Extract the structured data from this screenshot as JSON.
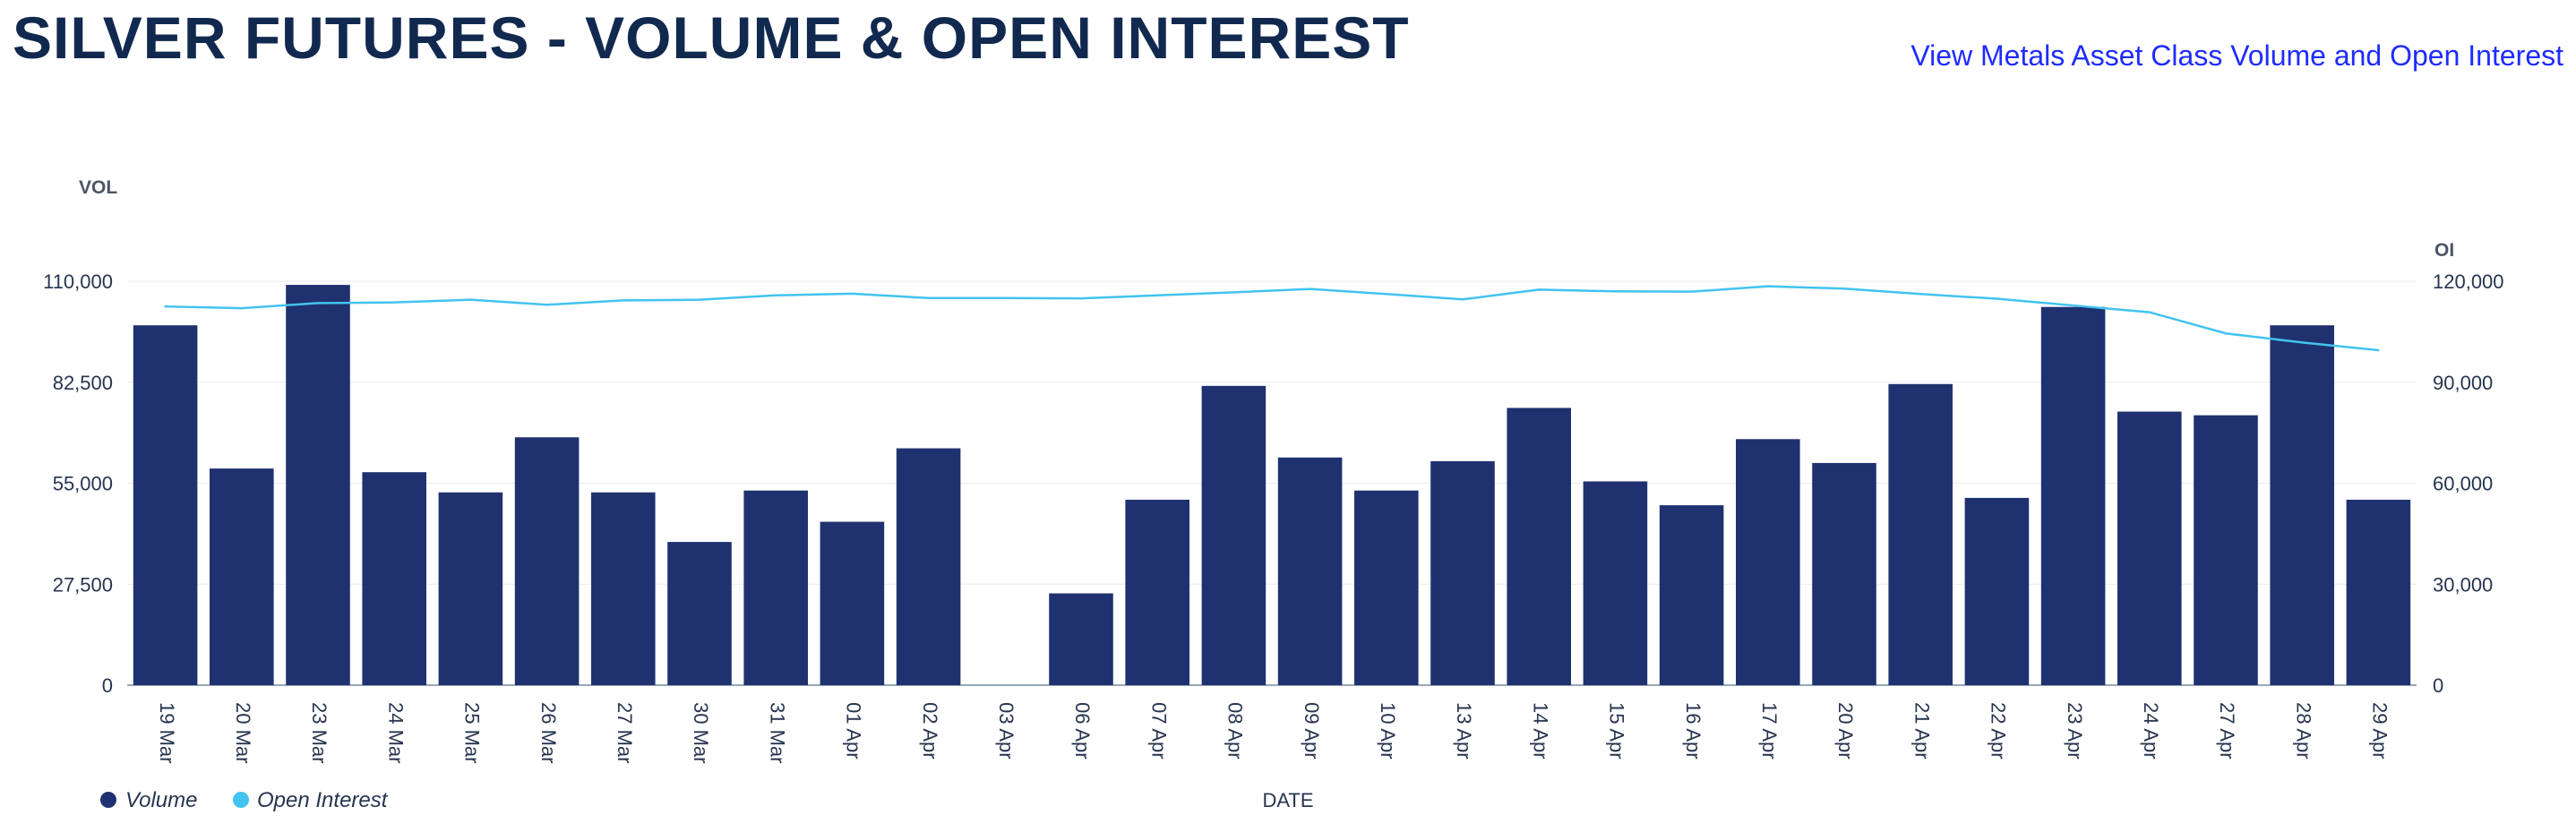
{
  "page": {
    "title": "SILVER FUTURES - VOLUME & OPEN INTEREST",
    "link_text": "View Metals Asset Class Volume and Open Interest"
  },
  "colors": {
    "volume_bar": "#1f316f",
    "open_interest_line": "#42c3ef",
    "gridline": "#e9ebef",
    "axis_text": "#27354f",
    "link": "#1f2cff",
    "title": "#12294f"
  },
  "chart_data": {
    "type": "bar",
    "title": "SILVER FUTURES - VOLUME & OPEN INTEREST",
    "xlabel": "DATE",
    "ylabel_left": "VOL",
    "ylabel_right": "OI",
    "categories": [
      "19 Mar",
      "20 Mar",
      "23 Mar",
      "24 Mar",
      "25 Mar",
      "26 Mar",
      "27 Mar",
      "30 Mar",
      "31 Mar",
      "01 Apr",
      "02 Apr",
      "03 Apr",
      "06 Apr",
      "07 Apr",
      "08 Apr",
      "09 Apr",
      "10 Apr",
      "13 Apr",
      "14 Apr",
      "15 Apr",
      "16 Apr",
      "17 Apr",
      "20 Apr",
      "21 Apr",
      "22 Apr",
      "23 Apr",
      "24 Apr",
      "27 Apr",
      "28 Apr",
      "29 Apr"
    ],
    "series": [
      {
        "name": "Volume",
        "type": "bar",
        "axis": "left",
        "values": [
          98000,
          59000,
          109000,
          58000,
          52500,
          67500,
          52500,
          39000,
          53000,
          44500,
          64500,
          0,
          25000,
          50500,
          81500,
          62000,
          53000,
          61000,
          75500,
          55500,
          49000,
          67000,
          60500,
          82000,
          51000,
          103000,
          74500,
          73500,
          98000,
          50500
        ]
      },
      {
        "name": "Open Interest",
        "type": "line",
        "axis": "right",
        "values": [
          112500,
          112000,
          113500,
          113700,
          114500,
          113000,
          114300,
          114500,
          115800,
          116300,
          115000,
          115000,
          114900,
          115800,
          116700,
          117700,
          116200,
          114600,
          117500,
          117000,
          116900,
          118500,
          117800,
          116200,
          114800,
          112800,
          110800,
          104500,
          101800,
          99500
        ]
      }
    ],
    "left_axis": {
      "ticks": [
        0,
        27500,
        55000,
        82500,
        110000
      ],
      "tick_labels": [
        "0",
        "27,500",
        "55,000",
        "82,500",
        "110,000"
      ],
      "ylim": [
        0,
        110000
      ]
    },
    "right_axis": {
      "ticks": [
        0,
        30000,
        60000,
        90000,
        120000
      ],
      "tick_labels": [
        "0",
        "30,000",
        "60,000",
        "90,000",
        "120,000"
      ],
      "ylim": [
        0,
        120000
      ]
    },
    "grid": true,
    "legend": {
      "position": "bottom-left",
      "items": [
        "Volume",
        "Open Interest"
      ]
    }
  }
}
